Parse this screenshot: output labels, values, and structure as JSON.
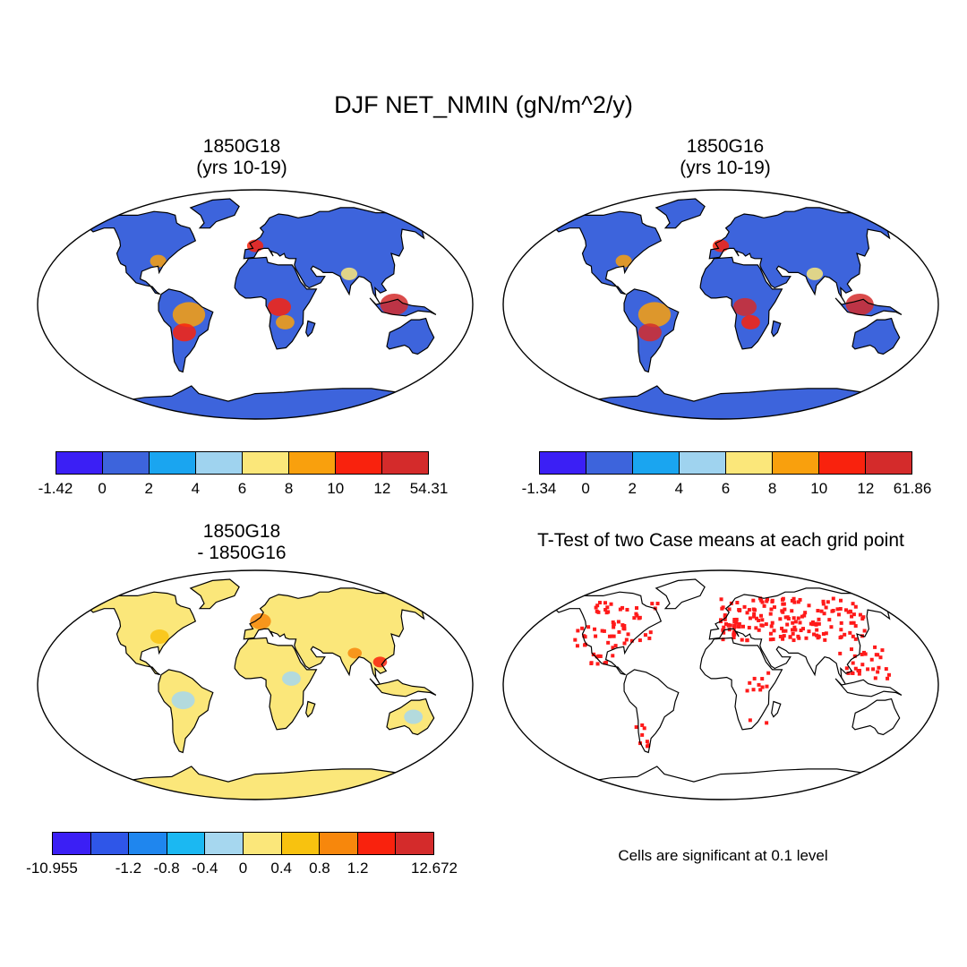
{
  "title": "DJF NET_NMIN (gN/m^2/y)",
  "panels": [
    {
      "id": "g18",
      "title_lines": [
        "1850G18",
        "(yrs 10-19)"
      ],
      "colors": [
        "#3b1ff5",
        "#3d64dc",
        "#1aa5f0",
        "#9fd3ef",
        "#fbe77a",
        "#f9a00d",
        "#f9220d",
        "#d42b2b"
      ],
      "labels": [
        "-1.42",
        "0",
        "2",
        "4",
        "6",
        "8",
        "10",
        "12",
        "54.31"
      ],
      "land_color": "#3d64dc",
      "antarctica_color": "#3d64dc",
      "hotspots": [
        {
          "lon": -55,
          "lat": -8,
          "r": 14,
          "color": "#f9a00d"
        },
        {
          "lon": -60,
          "lat": -22,
          "r": 10,
          "color": "#f9220d"
        },
        {
          "lon": 20,
          "lat": -2,
          "r": 10,
          "color": "#f9220d"
        },
        {
          "lon": 25,
          "lat": -14,
          "r": 8,
          "color": "#f9a00d"
        },
        {
          "lon": 115,
          "lat": 0,
          "r": 12,
          "color": "#d42b2b"
        },
        {
          "lon": 0,
          "lat": 46,
          "r": 7,
          "color": "#f9220d"
        },
        {
          "lon": -85,
          "lat": 34,
          "r": 7,
          "color": "#f9a00d"
        },
        {
          "lon": 80,
          "lat": 24,
          "r": 7,
          "color": "#fbe77a"
        }
      ]
    },
    {
      "id": "g16",
      "title_lines": [
        "1850G16",
        "(yrs 10-19)"
      ],
      "colors": [
        "#3b1ff5",
        "#3d64dc",
        "#1aa5f0",
        "#9fd3ef",
        "#fbe77a",
        "#f9a00d",
        "#f9220d",
        "#d42b2b"
      ],
      "labels": [
        "-1.34",
        "0",
        "2",
        "4",
        "6",
        "8",
        "10",
        "12",
        "61.86"
      ],
      "land_color": "#3d64dc",
      "antarctica_color": "#3d64dc",
      "hotspots": [
        {
          "lon": -55,
          "lat": -8,
          "r": 14,
          "color": "#f9a00d"
        },
        {
          "lon": -60,
          "lat": -22,
          "r": 10,
          "color": "#d42b2b"
        },
        {
          "lon": 20,
          "lat": -2,
          "r": 10,
          "color": "#d42b2b"
        },
        {
          "lon": 25,
          "lat": -14,
          "r": 8,
          "color": "#f9220d"
        },
        {
          "lon": 115,
          "lat": 0,
          "r": 12,
          "color": "#d42b2b"
        },
        {
          "lon": 0,
          "lat": 46,
          "r": 7,
          "color": "#f9220d"
        },
        {
          "lon": -85,
          "lat": 34,
          "r": 7,
          "color": "#f9a00d"
        },
        {
          "lon": 80,
          "lat": 24,
          "r": 7,
          "color": "#fbe77a"
        }
      ]
    },
    {
      "id": "diff",
      "title_lines": [
        "1850G18",
        "- 1850G16"
      ],
      "colors": [
        "#3b1ff5",
        "#2f56e8",
        "#1f86ee",
        "#1bb8f2",
        "#a6d7ef",
        "#fbe77a",
        "#f8c20f",
        "#f7870c",
        "#f9220d",
        "#d42b2b"
      ],
      "labels": [
        "-10.955",
        "",
        "-1.2",
        "-0.8",
        "-0.4",
        "0",
        "0.4",
        "0.8",
        "1.2",
        "",
        "12.672"
      ],
      "land_color": "#fbe77a",
      "antarctica_color": "#fbe77a",
      "hotspots": [
        {
          "lon": 5,
          "lat": 50,
          "r": 9,
          "color": "#f7870c"
        },
        {
          "lon": -85,
          "lat": 38,
          "r": 8,
          "color": "#f8c20f"
        },
        {
          "lon": -60,
          "lat": -12,
          "r": 10,
          "color": "#a6d7ef"
        },
        {
          "lon": 30,
          "lat": 5,
          "r": 8,
          "color": "#a6d7ef"
        },
        {
          "lon": 85,
          "lat": 25,
          "r": 6,
          "color": "#f7870c"
        },
        {
          "lon": 105,
          "lat": 18,
          "r": 6,
          "color": "#f9220d"
        },
        {
          "lon": 135,
          "lat": -25,
          "r": 8,
          "color": "#a6d7ef"
        }
      ]
    },
    {
      "id": "ttest",
      "title_lines": [
        "T-Test of two Case means at each grid point"
      ],
      "land_color": "#ffffff",
      "antarctica_color": "#ffffff",
      "sig_color": "#ff1a1a",
      "note": "Cells are significant at 0.1 level"
    }
  ]
}
